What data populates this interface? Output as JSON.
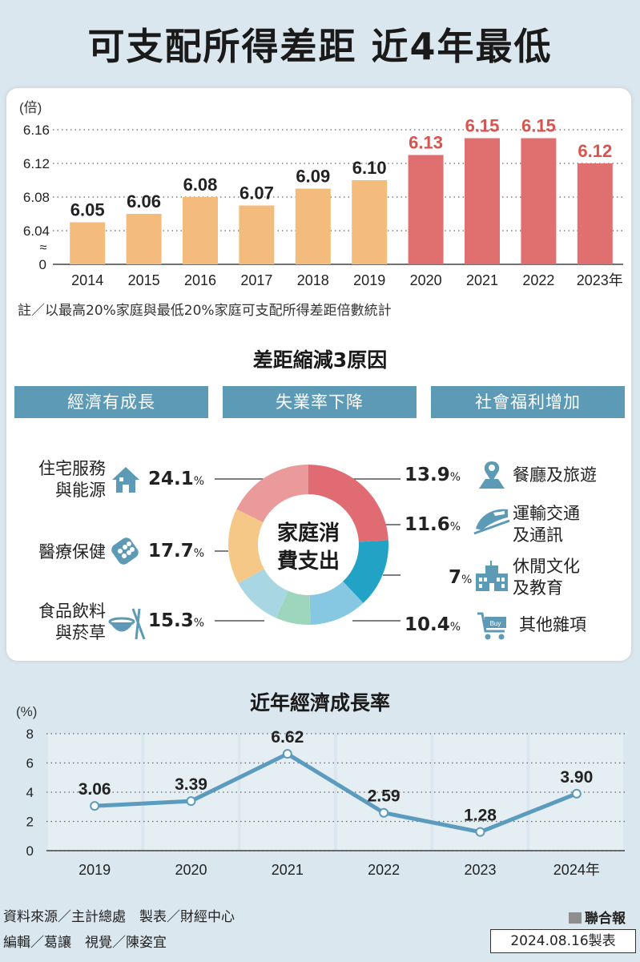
{
  "title": "可支配所得差距  近4年最低",
  "chart_data": [
    {
      "type": "bar",
      "unit_label": "(倍)",
      "categories": [
        "2014",
        "2015",
        "2016",
        "2017",
        "2018",
        "2019",
        "2020",
        "2021",
        "2022",
        "2023年"
      ],
      "values": [
        6.05,
        6.06,
        6.08,
        6.07,
        6.09,
        6.1,
        6.13,
        6.15,
        6.15,
        6.12
      ],
      "value_labels": [
        "6.05",
        "6.06",
        "6.08",
        "6.07",
        "6.09",
        "6.10",
        "6.13",
        "6.15",
        "6.15",
        "6.12"
      ],
      "yticks": [
        "6.16",
        "6.12",
        "6.08",
        "6.04",
        "0"
      ],
      "axis_break": "≈",
      "ylim": [
        6.0,
        6.16
      ],
      "colors": {
        "before_2020": "#f4bc7c",
        "from_2020": "#e07070",
        "label_highlight": "#d9534f"
      },
      "note": "註／以最高20%家庭與最低20%家庭可支配所得差距倍數統計"
    },
    {
      "type": "pie",
      "center_label_1": "家庭消",
      "center_label_2": "費支出",
      "slices": [
        {
          "label": "住宅服務與能源",
          "label_line1": "住宅服務",
          "label_line2": "與能源",
          "value": 24.1,
          "value_text": "24.1",
          "color": "#e06b73",
          "icon": "house-icon"
        },
        {
          "label": "餐廳及旅遊",
          "label_line1": "餐廳及旅遊",
          "label_line2": "",
          "value": 13.9,
          "value_text": "13.9",
          "color": "#22a3c6",
          "icon": "location-pin-map-icon"
        },
        {
          "label": "運輸交通及通訊",
          "label_line1": "運輸交通",
          "label_line2": "及通訊",
          "value": 11.6,
          "value_text": "11.6",
          "color": "#86c7e2",
          "icon": "train-icon"
        },
        {
          "label": "休閒文化及教育",
          "label_line1": "休閒文化",
          "label_line2": "及教育",
          "value": 7,
          "value_text": "7",
          "color": "#9ed6bd",
          "icon": "school-building-icon"
        },
        {
          "label": "其他雜項",
          "label_line1": "其他雜項",
          "label_line2": "",
          "value": 10.4,
          "value_text": "10.4",
          "color": "#a9d6e3",
          "icon": "shopping-cart-icon"
        },
        {
          "label": "食品飲料與菸草",
          "label_line1": "食品飲料",
          "label_line2": "與菸草",
          "value": 15.3,
          "value_text": "15.3",
          "color": "#f5c887",
          "icon": "bowl-chopsticks-icon"
        },
        {
          "label": "醫療保健",
          "label_line1": "醫療保健",
          "label_line2": "",
          "value": 17.7,
          "value_text": "17.7",
          "color": "#ea9a9a",
          "icon": "pills-icon"
        }
      ],
      "unit": "%"
    },
    {
      "type": "line",
      "title": "近年經濟成長率",
      "unit_label": "(%)",
      "x": [
        "2019",
        "2020",
        "2021",
        "2022",
        "2023",
        "2024年"
      ],
      "values": [
        3.06,
        3.39,
        6.62,
        2.59,
        1.28,
        3.9
      ],
      "value_labels": [
        "3.06",
        "3.39",
        "6.62",
        "2.59",
        "1.28",
        "3.90"
      ],
      "yticks": [
        "8",
        "6",
        "4",
        "2",
        "0"
      ],
      "ylim": [
        0,
        8
      ],
      "line_color": "#5b9bbd"
    }
  ],
  "reduction": {
    "title": "差距縮減3原因",
    "reasons": [
      "經濟有成長",
      "失業率下降",
      "社會福利增加"
    ]
  },
  "footer": {
    "source": "資料來源／主計總處　製表／財經中心",
    "credits": "編輯／葛讓　視覺／陳姿宜",
    "brand": "聯合報",
    "date": "2024.08.16製表"
  }
}
